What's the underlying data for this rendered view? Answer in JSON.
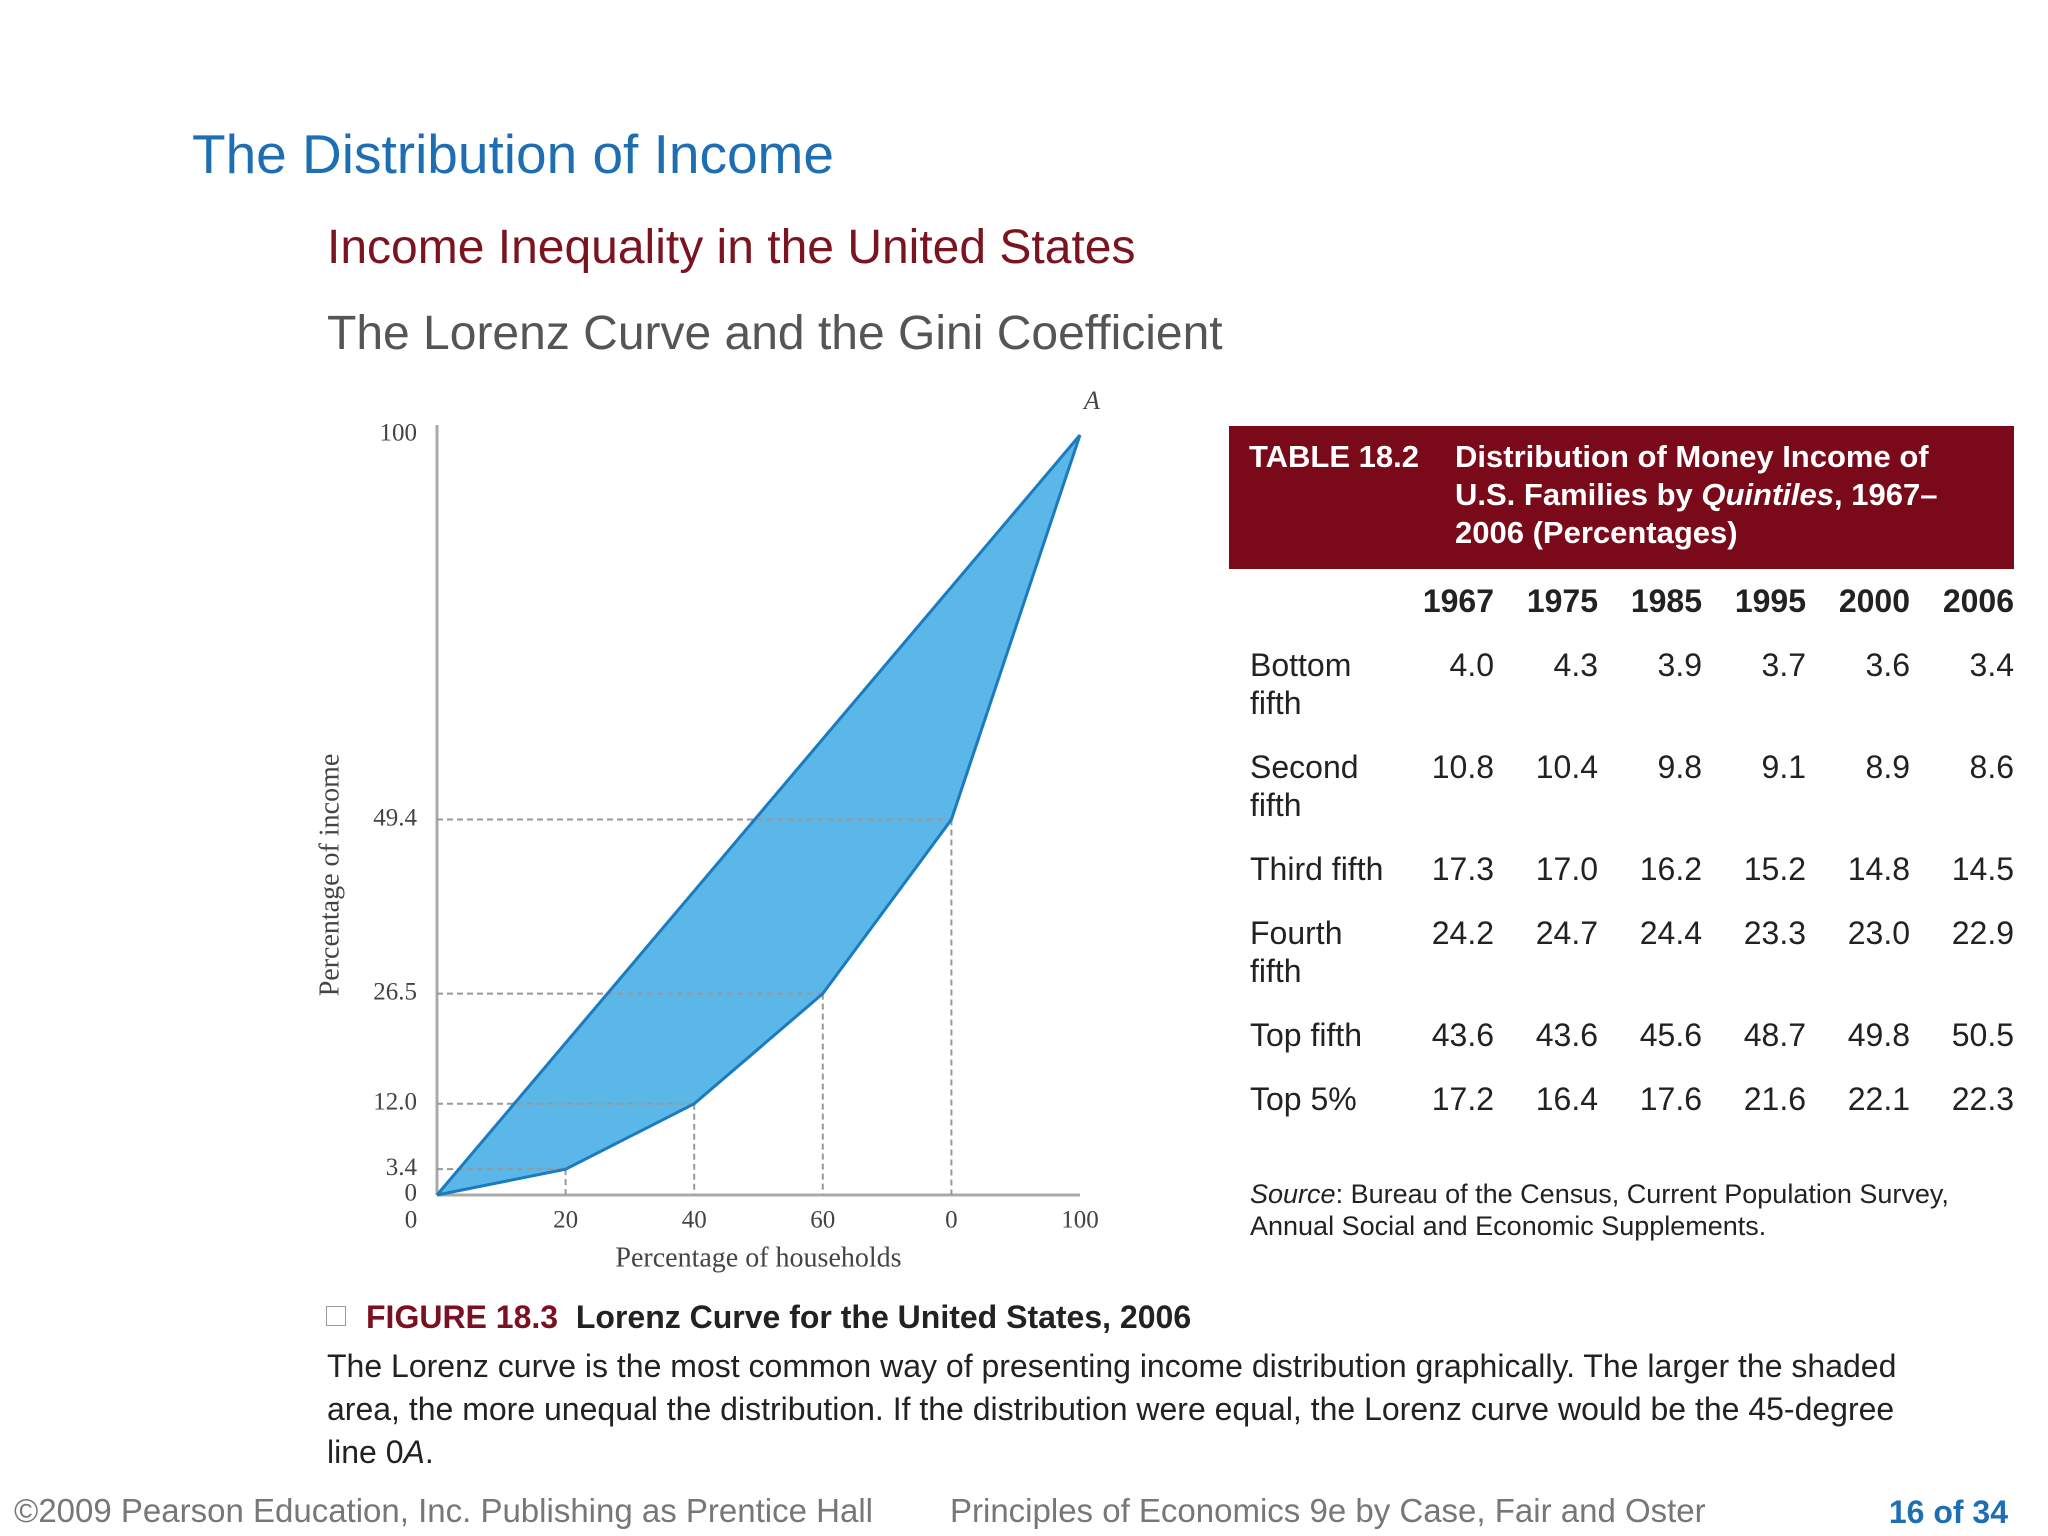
{
  "title": "The Distribution of Income",
  "subtitle": "Income Inequality in the United States",
  "subheading": "The Lorenz Curve and the Gini Coefficient",
  "chart_data": {
    "type": "lorenz",
    "x_label": "Percentage of households",
    "y_label": "Percentage of income",
    "annotation": "A",
    "xlim": [
      0,
      100
    ],
    "ylim": [
      0,
      100
    ],
    "xticks": [
      0,
      20,
      40,
      60,
      {
        "value": 80,
        "label": "0"
      },
      100
    ],
    "yticks": [
      0,
      3.4,
      {
        "value": 12,
        "label": "12.0"
      },
      26.5,
      49.4,
      100
    ],
    "series": [
      {
        "x": [
          0,
          100
        ],
        "values": [
          0,
          100
        ],
        "color": "#1a7bbf"
      },
      {
        "x": [
          0,
          20,
          40,
          60,
          80,
          100
        ],
        "values": [
          0,
          3.4,
          12,
          26.5,
          49.4,
          100
        ],
        "color": "#1a7bbf"
      }
    ],
    "fill": "#5bb7e8"
  },
  "table": {
    "number": "TABLE 18.2",
    "title": [
      "Distribution of Money Income of U.S. Families by ",
      "Quintiles",
      ", 1967–2006 (Percentages)"
    ],
    "columns": [
      "1967",
      "1975",
      "1985",
      "1995",
      "2000",
      "2006"
    ],
    "rows": [
      [
        "Bottom fifth",
        "4.0",
        "4.3",
        "3.9",
        "3.7",
        "3.6",
        "3.4"
      ],
      [
        "Second fifth",
        "10.8",
        "10.4",
        "9.8",
        "9.1",
        "8.9",
        "8.6"
      ],
      [
        "Third fifth",
        "17.3",
        "17.0",
        "16.2",
        "15.2",
        "14.8",
        "14.5"
      ],
      [
        "Fourth fifth",
        "24.2",
        "24.7",
        "24.4",
        "23.3",
        "23.0",
        "22.9"
      ],
      [
        "Top fifth",
        "43.6",
        "43.6",
        "45.6",
        "48.7",
        "49.8",
        "50.5"
      ],
      [
        "Top 5%",
        "17.2",
        "16.4",
        "17.6",
        "21.6",
        "22.1",
        "22.3"
      ]
    ],
    "source": [
      "Source",
      ": Bureau of the Census, Current Population Survey, Annual Social and Economic Supplements."
    ]
  },
  "caption": {
    "number": "FIGURE 18.3",
    "title": "Lorenz Curve for the United States, 2006",
    "text": [
      "The Lorenz curve is the most common way of presenting income distribution graphically. The larger the shaded area, the more unequal the distribution. If the distribution were equal, the Lorenz curve would be the 45-degree line 0",
      "A",
      "."
    ]
  },
  "footer": {
    "copyright": "©2009 Pearson Education, Inc. Publishing as Prentice Hall",
    "book": "Principles of Economics 9e by Case, Fair and Oster",
    "page": "16 of 34"
  }
}
